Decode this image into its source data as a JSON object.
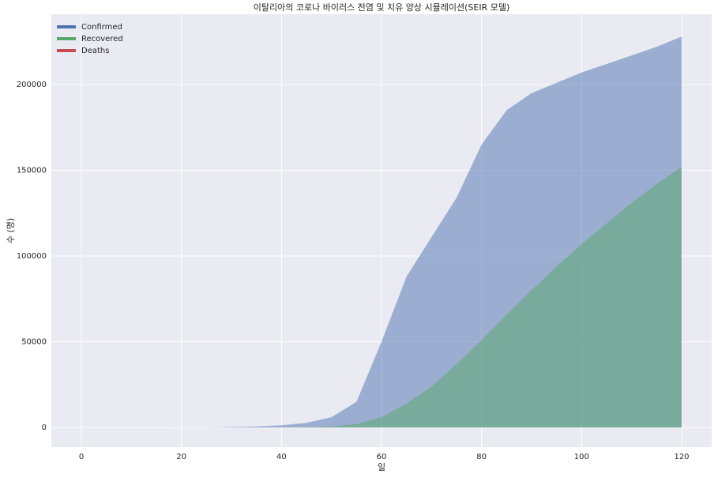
{
  "chart_data": {
    "type": "area",
    "title": "이탈리아의 코로나 바이러스 전염 및 치유 양상 시뮬레이션(SEIR 모델)",
    "xlabel": "일",
    "ylabel": "수 (명)",
    "x": [
      0,
      5,
      10,
      15,
      20,
      25,
      30,
      35,
      40,
      45,
      50,
      55,
      60,
      65,
      70,
      75,
      80,
      85,
      90,
      95,
      100,
      105,
      110,
      115,
      120
    ],
    "series": [
      {
        "name": "Confirmed",
        "color": "#4c72b0",
        "values": [
          0,
          0,
          0,
          0,
          50,
          100,
          300,
          600,
          1300,
          2700,
          6000,
          15000,
          50000,
          88000,
          111000,
          134000,
          165000,
          185000,
          195000,
          201000,
          207000,
          212000,
          217000,
          222000,
          228000
        ]
      },
      {
        "name": "Recovered",
        "color": "#55a868",
        "values": [
          0,
          0,
          0,
          0,
          0,
          0,
          0,
          0,
          0,
          100,
          600,
          2000,
          6000,
          14000,
          24000,
          37000,
          51000,
          66000,
          80000,
          94000,
          107000,
          119000,
          131000,
          142000,
          152000
        ]
      },
      {
        "name": "Deaths",
        "color": "#c44e52",
        "values": [
          0,
          0,
          0,
          0,
          0,
          0,
          0,
          0,
          0,
          0,
          0,
          0,
          0,
          0,
          0,
          0,
          0,
          0,
          0,
          0,
          0,
          0,
          0,
          0,
          0
        ]
      }
    ],
    "xlim": [
      -6,
      126
    ],
    "ylim": [
      -11500,
      241000
    ],
    "xticks": [
      0,
      20,
      40,
      60,
      80,
      100,
      120
    ],
    "yticks": [
      0,
      50000,
      100000,
      150000,
      200000
    ],
    "grid": true,
    "legend": "upper left"
  }
}
